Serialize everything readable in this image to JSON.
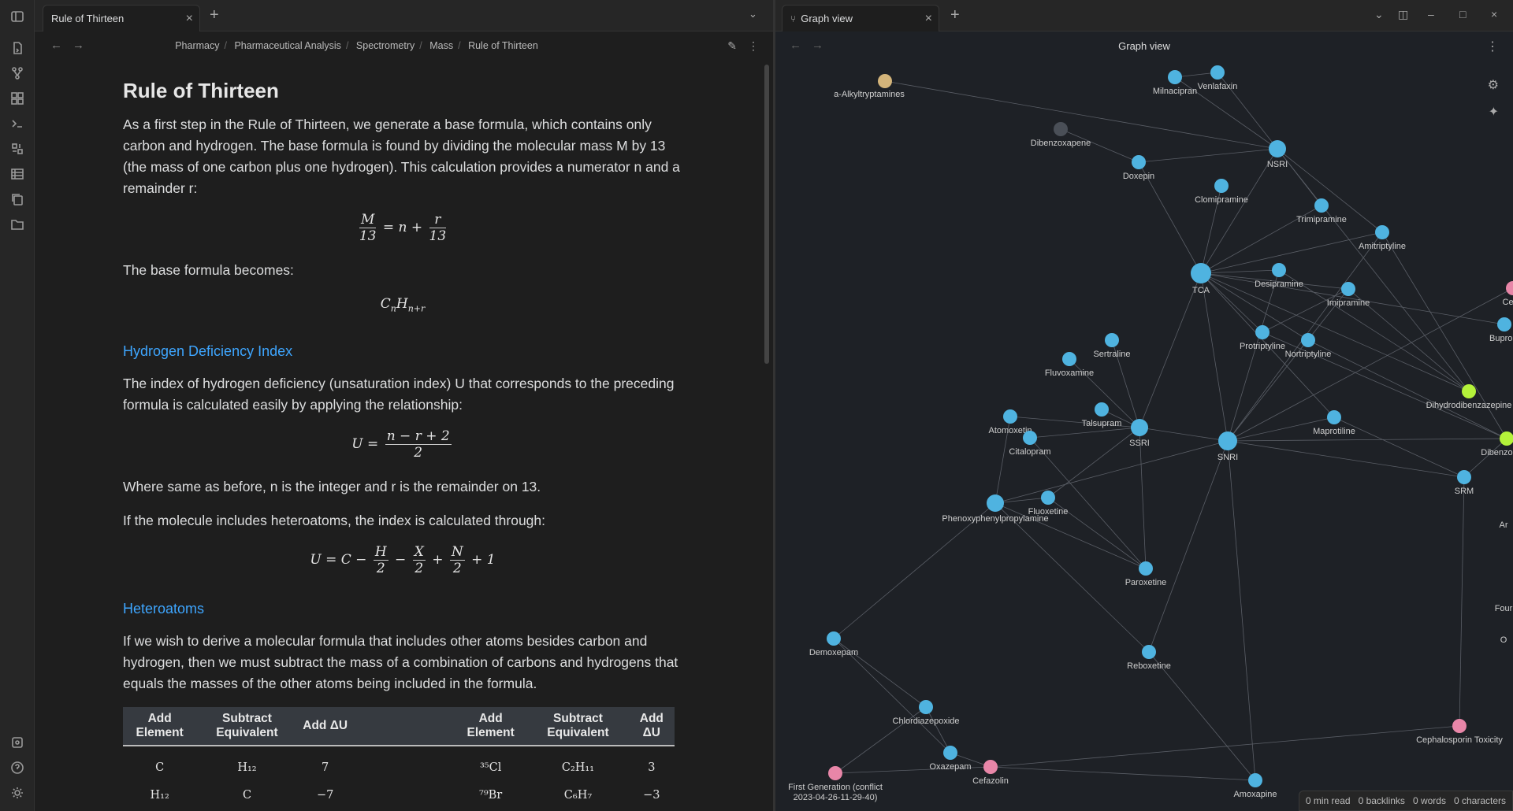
{
  "left_tab": {
    "title": "Rule of Thirteen"
  },
  "breadcrumb": [
    "Pharmacy",
    "Pharmaceutical Analysis",
    "Spectrometry",
    "Mass",
    "Rule of Thirteen"
  ],
  "doc": {
    "title": "Rule of Thirteen",
    "p1": "As a first step in the Rule of Thirteen, we generate a base formula, which contains only carbon and hydrogen. The base formula is found by dividing the molecular mass M by 13 (the mass of one carbon plus one hydrogen). This calculation provides a numerator n and a remainder r:",
    "p2": "The base formula becomes:",
    "h_hdi": "Hydrogen Deficiency Index",
    "p3": "The index of hydrogen deficiency (unsaturation index) U that corresponds to the preceding formula is calculated easily by applying the relationship:",
    "p4": "Where same as before, n is the integer and r is the remainder on 13.",
    "p5": "If the molecule includes heteroatoms, the index is calculated through:",
    "h_hetero": "Heteroatoms",
    "p6": "If we wish to derive a molecular formula that includes other atoms besides carbon and hydrogen, then we must subtract the mass of a combination of carbons and hydrogens that equals the masses of the other atoms being included in the formula.",
    "table": {
      "headers": [
        "Add Element",
        "Subtract Equivalent",
        "Add ΔU",
        "",
        "Add Element",
        "Subtract Equivalent",
        "Add ΔU"
      ],
      "rows": [
        [
          "C",
          "H₁₂",
          "7",
          "",
          "³⁵Cl",
          "C₂H₁₁",
          "3"
        ],
        [
          "H₁₂",
          "C",
          "−7",
          "",
          "⁷⁹Br",
          "C₆H₇",
          "−3"
        ]
      ]
    }
  },
  "right_tab": {
    "title": "Graph view"
  },
  "graph": {
    "title": "Graph view",
    "colors": {
      "blue": "#4fb3e0",
      "pink": "#e886a8",
      "green": "#b4f23a",
      "tan": "#d3b47a",
      "gray": "#4a4f57",
      "edge": "#5a5e66"
    },
    "nodes": [
      {
        "id": "alkyl",
        "label": "a-Alkyltryptamines",
        "c": "tan"
      },
      {
        "id": "milnacipran",
        "label": "Milnacipran",
        "c": "blue"
      },
      {
        "id": "venlafaxin",
        "label": "Venlafaxin",
        "c": "blue"
      },
      {
        "id": "dibenzoxapene",
        "label": "Dibenzoxapene",
        "c": "gray"
      },
      {
        "id": "nsri",
        "label": "NSRI",
        "c": "blue"
      },
      {
        "id": "doxepin",
        "label": "Doxepin",
        "c": "blue"
      },
      {
        "id": "clomipramine",
        "label": "Clomipramine",
        "c": "blue"
      },
      {
        "id": "trimipramine",
        "label": "Trimipramine",
        "c": "blue"
      },
      {
        "id": "amitriptyline",
        "label": "Amitriptyline",
        "c": "blue"
      },
      {
        "id": "tca",
        "label": "TCA",
        "c": "blue"
      },
      {
        "id": "desipramine",
        "label": "Desipramine",
        "c": "blue"
      },
      {
        "id": "imipramine",
        "label": "Imipramine",
        "c": "blue"
      },
      {
        "id": "protriptyline",
        "label": "Protriptyline",
        "c": "blue"
      },
      {
        "id": "nortriptyline",
        "label": "Nortriptyline",
        "c": "blue"
      },
      {
        "id": "sertraline",
        "label": "Sertraline",
        "c": "blue"
      },
      {
        "id": "fluvoxamine",
        "label": "Fluvoxamine",
        "c": "blue"
      },
      {
        "id": "atomoxetin",
        "label": "Atomoxetin",
        "c": "blue"
      },
      {
        "id": "talsupram",
        "label": "Talsupram",
        "c": "blue"
      },
      {
        "id": "ssri",
        "label": "SSRI",
        "c": "blue"
      },
      {
        "id": "snri",
        "label": "SNRI",
        "c": "blue"
      },
      {
        "id": "maprotiline",
        "label": "Maprotiline",
        "c": "blue"
      },
      {
        "id": "citalopram",
        "label": "Citalopram",
        "c": "blue"
      },
      {
        "id": "dihydro",
        "label": "Dihydrodibenzazepine",
        "c": "green"
      },
      {
        "id": "dibenzocyclo",
        "label": "Dibenzocyclo",
        "c": "green"
      },
      {
        "id": "srm",
        "label": "SRM",
        "c": "blue"
      },
      {
        "id": "phenoxy",
        "label": "Phenoxyphenylpropylamine",
        "c": "blue"
      },
      {
        "id": "fluoxetine",
        "label": "Fluoxetine",
        "c": "blue"
      },
      {
        "id": "paroxetine",
        "label": "Paroxetine",
        "c": "blue"
      },
      {
        "id": "demoxepam",
        "label": "Demoxepam",
        "c": "blue"
      },
      {
        "id": "reboxetine",
        "label": "Reboxetine",
        "c": "blue"
      },
      {
        "id": "chlordiazepoxide",
        "label": "Chlordiazepoxide",
        "c": "blue"
      },
      {
        "id": "oxazepam",
        "label": "Oxazepam",
        "c": "blue"
      },
      {
        "id": "cefazolin",
        "label": "Cefazolin",
        "c": "pink"
      },
      {
        "id": "firstgen",
        "label": "First Generation (conflict",
        "label2": "2023-04-26-11-29-40)",
        "c": "pink"
      },
      {
        "id": "amoxapine",
        "label": "Amoxapine",
        "c": "blue"
      },
      {
        "id": "cephtox",
        "label": "Cephalosporin Toxicity",
        "c": "pink"
      },
      {
        "id": "cefur",
        "label": "Cefur",
        "c": "pink"
      },
      {
        "id": "bupropi",
        "label": "Bupropi",
        "c": "blue"
      },
      {
        "id": "ar",
        "label": "Ar",
        "c": "none"
      },
      {
        "id": "four",
        "label": "Four",
        "c": "none"
      },
      {
        "id": "o",
        "label": "O",
        "c": "none"
      }
    ]
  },
  "status": {
    "read": "0 min read",
    "backlinks": "0 backlinks",
    "words": "0 words",
    "chars": "0 characters"
  }
}
